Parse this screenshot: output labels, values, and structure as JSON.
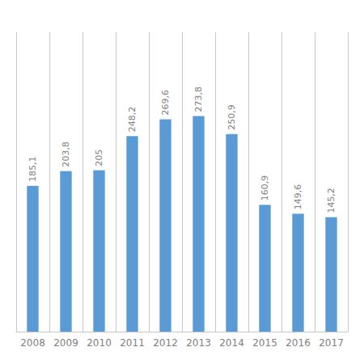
{
  "chart_data": {
    "type": "bar",
    "categories": [
      "2008",
      "2009",
      "2010",
      "2011",
      "2012",
      "2013",
      "2014",
      "2015",
      "2016",
      "2017"
    ],
    "values": [
      185.1,
      203.8,
      205.0,
      248.2,
      269.6,
      273.8,
      250.9,
      160.9,
      149.6,
      145.2
    ],
    "value_labels": [
      "185,1",
      "203,8",
      "205",
      "248,2",
      "269,6",
      "273,8",
      "250,9",
      "160,9",
      "149,6",
      "145,2"
    ],
    "data_labels": true,
    "color": "#5b9bd5",
    "ylim": [
      0,
      380
    ],
    "grid": true,
    "tick_labels": "x"
  }
}
